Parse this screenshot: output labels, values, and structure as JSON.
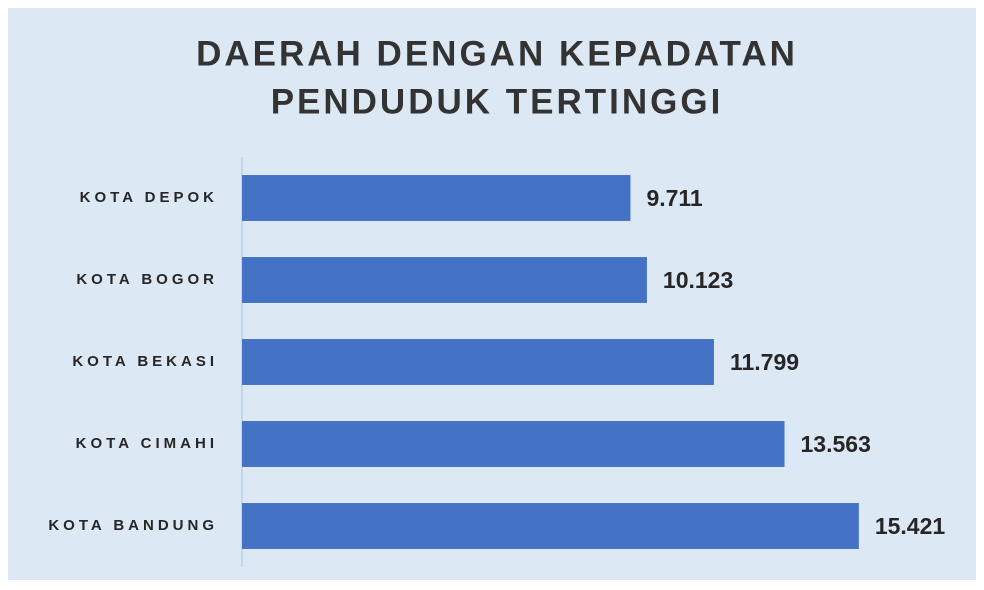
{
  "chart_data": {
    "type": "bar",
    "orientation": "horizontal",
    "title": [
      "DAERAH DENGAN KEPADATAN",
      "PENDUDUK TERTINGGI"
    ],
    "categories": [
      "KOTA DEPOK",
      "KOTA BOGOR",
      "KOTA BEKASI",
      "KOTA CIMAHI",
      "KOTA BANDUNG"
    ],
    "values": [
      9711,
      10123,
      11799,
      13563,
      15421
    ],
    "value_labels": [
      "9.711",
      "10.123",
      "11.799",
      "13.563",
      "15.421"
    ],
    "color": "#4472c4",
    "xlim": [
      0,
      18000
    ]
  }
}
